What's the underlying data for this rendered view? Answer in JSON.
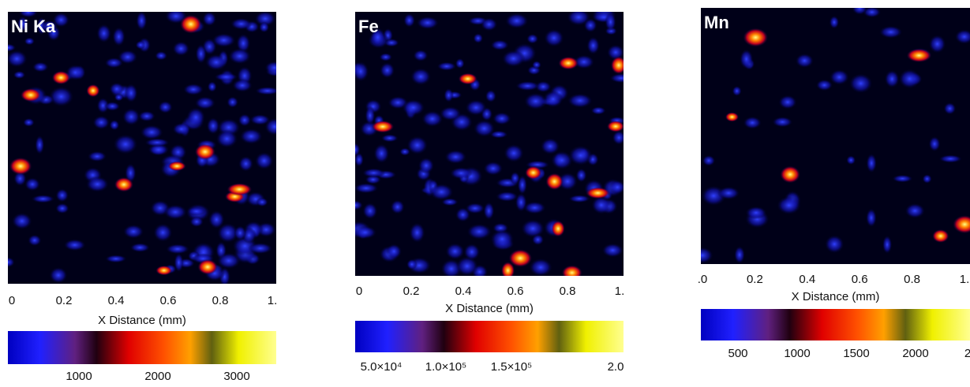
{
  "panels": [
    {
      "title": "Ni Ka",
      "x_ticks": [
        "0",
        "0.2",
        "0.4",
        "0.6",
        "0.8",
        "1."
      ],
      "x_label": "X Distance (mm)",
      "colorbar_ticks": [
        "1000",
        "2000",
        "3000"
      ]
    },
    {
      "title": "Fe",
      "x_ticks": [
        "0",
        "0.2",
        "0.4",
        "0.6",
        "0.8",
        "1."
      ],
      "x_label": "X Distance (mm)",
      "colorbar_ticks": [
        "5.0×10⁴",
        "1.0×10⁵",
        "1.5×10⁵",
        "2.0"
      ]
    },
    {
      "title": "Mn",
      "x_ticks": [
        ".0",
        "0.2",
        "0.4",
        "0.6",
        "0.8",
        "1."
      ],
      "x_label": "X Distance (mm)",
      "colorbar_ticks": [
        "500",
        "1000",
        "1500",
        "2000",
        "2"
      ]
    }
  ]
}
